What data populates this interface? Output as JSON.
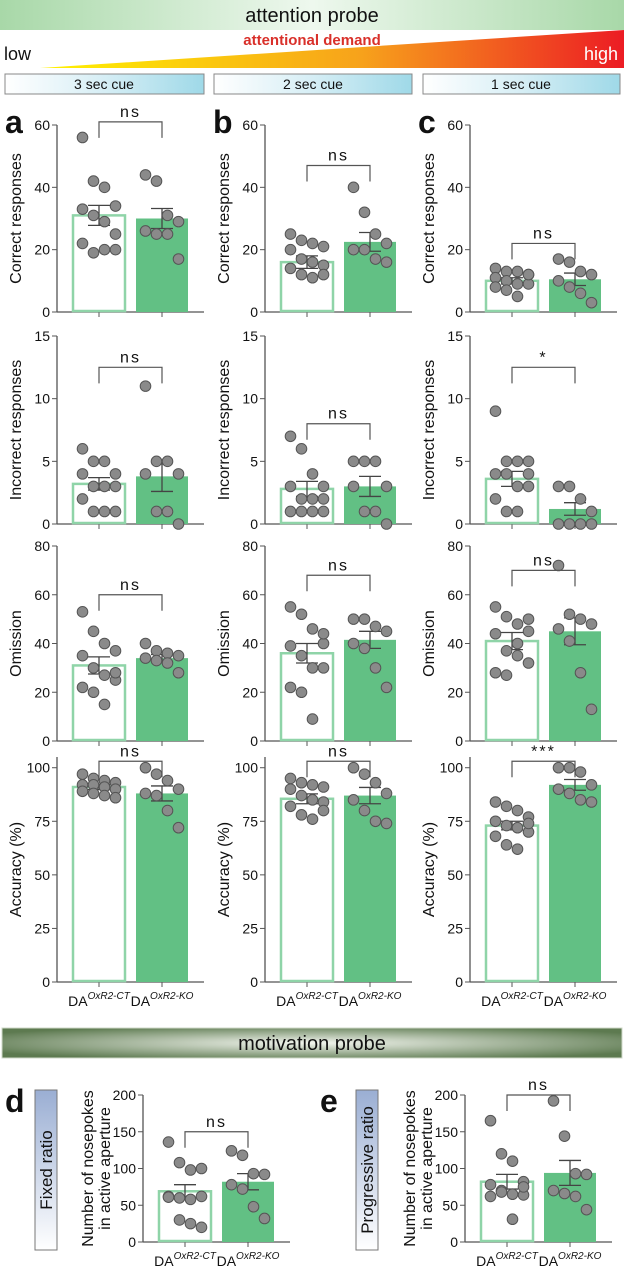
{
  "header": {
    "attention_title": "attention probe",
    "low": "low",
    "high": "high",
    "demand": "attentional demand",
    "cues": [
      "3 sec cue",
      "2 sec cue",
      "1 sec cue"
    ]
  },
  "motivation_title": "motivation probe",
  "x_labels": {
    "ct_base": "DA",
    "ct_sup": "OxR2-CT",
    "ko_base": "DA",
    "ko_sup": "OxR2-KO"
  },
  "side_boxes": {
    "d": "Fixed ratio",
    "e": "Progressive ratio"
  },
  "colors": {
    "ct_edge": "#8fd4a8",
    "ko_fill": "#62c084",
    "point": "#8a8a8a",
    "demand_text": "#d9302a"
  },
  "chart_data": [
    {
      "panel_letter": "a",
      "type": "bar",
      "ylabel": "Correct responses",
      "ylim": [
        0,
        60
      ],
      "yticks": [
        "0",
        "20",
        "40",
        "60"
      ],
      "categories": [
        "DA OxR2-CT",
        "DA OxR2-KO"
      ],
      "series": [
        {
          "name": "DA OxR2-CT",
          "mean": 31,
          "sem": 3.2,
          "points": [
            56,
            42,
            40,
            34,
            33,
            31,
            29,
            25,
            22,
            19,
            20,
            20
          ]
        },
        {
          "name": "DA OxR2-KO",
          "mean": 30,
          "sem": 3.2,
          "points": [
            44,
            42,
            31,
            29,
            26,
            25,
            25,
            17
          ]
        }
      ],
      "significance": {
        "label": "ns",
        "bracket": 61
      }
    },
    {
      "panel_letter": "b",
      "type": "bar",
      "ylabel": "Correct responses",
      "ylim": [
        0,
        60
      ],
      "yticks": [
        "0",
        "20",
        "40",
        "60"
      ],
      "categories": [
        "DA OxR2-CT",
        "DA OxR2-KO"
      ],
      "series": [
        {
          "name": "DA OxR2-CT",
          "mean": 16,
          "sem": 2,
          "points": [
            25,
            23,
            22,
            21,
            20,
            17,
            16,
            15,
            14,
            12,
            11,
            12
          ]
        },
        {
          "name": "DA OxR2-KO",
          "mean": 22.5,
          "sem": 3,
          "points": [
            40,
            32,
            25,
            22,
            20,
            20,
            17,
            16
          ]
        }
      ],
      "significance": {
        "label": "ns",
        "bracket": 47
      }
    },
    {
      "panel_letter": "c",
      "type": "bar",
      "ylabel": "Correct responses",
      "ylim": [
        0,
        60
      ],
      "yticks": [
        "0",
        "20",
        "40",
        "60"
      ],
      "categories": [
        "DA OxR2-CT",
        "DA OxR2-KO"
      ],
      "series": [
        {
          "name": "DA OxR2-CT",
          "mean": 10,
          "sem": 1,
          "points": [
            14,
            13,
            13,
            12,
            11,
            10,
            9,
            9,
            8,
            7,
            5,
            12
          ]
        },
        {
          "name": "DA OxR2-KO",
          "mean": 10.5,
          "sem": 2,
          "points": [
            17,
            16,
            13,
            12,
            10,
            8,
            6,
            3
          ]
        }
      ],
      "significance": {
        "label": "ns",
        "bracket": 22
      }
    },
    {
      "panel_letter": "",
      "type": "bar",
      "ylabel": "Incorrect responses",
      "ylim": [
        0,
        15
      ],
      "yticks": [
        "0",
        "5",
        "10",
        "15"
      ],
      "categories": [
        "DA OxR2-CT",
        "DA OxR2-KO"
      ],
      "series": [
        {
          "name": "DA OxR2-CT",
          "mean": 3.2,
          "sem": 0.5,
          "points": [
            6,
            5,
            5,
            4,
            4,
            3,
            3,
            3,
            2,
            1,
            1,
            1
          ]
        },
        {
          "name": "DA OxR2-KO",
          "mean": 3.8,
          "sem": 1.2,
          "points": [
            11,
            5,
            5,
            4,
            4,
            1,
            1,
            0
          ]
        }
      ],
      "significance": {
        "label": "ns",
        "bracket": 12.5
      }
    },
    {
      "panel_letter": "",
      "type": "bar",
      "ylabel": "Incorrect responses",
      "ylim": [
        0,
        15
      ],
      "yticks": [
        "0",
        "5",
        "10",
        "15"
      ],
      "categories": [
        "DA OxR2-CT",
        "DA OxR2-KO"
      ],
      "series": [
        {
          "name": "DA OxR2-CT",
          "mean": 2.8,
          "sem": 0.6,
          "points": [
            7,
            6,
            4,
            3,
            3,
            2,
            2,
            1,
            1,
            1,
            1,
            2
          ]
        },
        {
          "name": "DA OxR2-KO",
          "mean": 3,
          "sem": 0.8,
          "points": [
            5,
            5,
            5,
            3,
            3,
            1,
            1,
            0
          ]
        }
      ],
      "significance": {
        "label": "ns",
        "bracket": 8
      }
    },
    {
      "panel_letter": "",
      "type": "bar",
      "ylabel": "Incorrect responses",
      "ylim": [
        0,
        15
      ],
      "yticks": [
        "0",
        "5",
        "10",
        "15"
      ],
      "categories": [
        "DA OxR2-CT",
        "DA OxR2-KO"
      ],
      "series": [
        {
          "name": "DA OxR2-CT",
          "mean": 3.6,
          "sem": 0.6,
          "points": [
            9,
            5,
            5,
            4,
            4,
            4,
            3,
            3,
            2,
            1,
            1,
            5
          ]
        },
        {
          "name": "DA OxR2-KO",
          "mean": 1.2,
          "sem": 0.5,
          "points": [
            3,
            3,
            2,
            1,
            0,
            0,
            0,
            0
          ]
        }
      ],
      "significance": {
        "label": "*",
        "bracket": 12.5
      }
    },
    {
      "panel_letter": "",
      "type": "bar",
      "ylabel": "Omission",
      "ylim": [
        0,
        80
      ],
      "yticks": [
        "0",
        "20",
        "40",
        "60",
        "80"
      ],
      "categories": [
        "DA OxR2-CT",
        "DA OxR2-KO"
      ],
      "series": [
        {
          "name": "DA OxR2-CT",
          "mean": 31,
          "sem": 3.5,
          "points": [
            53,
            45,
            40,
            37,
            35,
            30,
            27,
            25,
            22,
            20,
            15,
            28
          ]
        },
        {
          "name": "DA OxR2-KO",
          "mean": 34,
          "sem": 1.5,
          "points": [
            40,
            37,
            36,
            35,
            34,
            33,
            32,
            28
          ]
        }
      ],
      "significance": {
        "label": "ns",
        "bracket": 60
      }
    },
    {
      "panel_letter": "",
      "type": "bar",
      "ylabel": "Omission",
      "ylim": [
        0,
        80
      ],
      "yticks": [
        "0",
        "20",
        "40",
        "60",
        "80"
      ],
      "categories": [
        "DA OxR2-CT",
        "DA OxR2-KO"
      ],
      "series": [
        {
          "name": "DA OxR2-CT",
          "mean": 36,
          "sem": 4,
          "points": [
            55,
            52,
            46,
            40,
            39,
            35,
            30,
            30,
            22,
            20,
            9,
            44
          ]
        },
        {
          "name": "DA OxR2-KO",
          "mean": 41.5,
          "sem": 3.5,
          "points": [
            50,
            50,
            47,
            45,
            40,
            38,
            30,
            22
          ]
        }
      ],
      "significance": {
        "label": "ns",
        "bracket": 68
      }
    },
    {
      "panel_letter": "",
      "type": "bar",
      "ylabel": "Omission",
      "ylim": [
        0,
        80
      ],
      "yticks": [
        "0",
        "20",
        "40",
        "60",
        "80"
      ],
      "categories": [
        "DA OxR2-CT",
        "DA OxR2-KO"
      ],
      "series": [
        {
          "name": "DA OxR2-CT",
          "mean": 41,
          "sem": 3.5,
          "points": [
            55,
            51,
            48,
            45,
            44,
            37,
            35,
            32,
            28,
            27,
            40,
            50
          ]
        },
        {
          "name": "DA OxR2-KO",
          "mean": 45,
          "sem": 5.5,
          "points": [
            72,
            52,
            50,
            48,
            46,
            41,
            28,
            13
          ]
        }
      ],
      "significance": {
        "label": "ns",
        "bracket": 70
      }
    },
    {
      "panel_letter": "",
      "type": "bar",
      "ylabel": "Accuracy (%)",
      "ylim": [
        0,
        105
      ],
      "yticks": [
        "0",
        "25",
        "50",
        "75",
        "100"
      ],
      "categories": [
        "DA OxR2-CT",
        "DA OxR2-KO"
      ],
      "series": [
        {
          "name": "DA OxR2-CT",
          "mean": 91,
          "sem": 1.2,
          "points": [
            97,
            95,
            94,
            93,
            92,
            92,
            91,
            90,
            89,
            88,
            87,
            86
          ]
        },
        {
          "name": "DA OxR2-KO",
          "mean": 88,
          "sem": 3.5,
          "points": [
            100,
            97,
            94,
            90,
            88,
            87,
            80,
            72
          ]
        }
      ],
      "significance": {
        "label": "ns",
        "bracket": 103
      }
    },
    {
      "panel_letter": "",
      "type": "bar",
      "ylabel": "Accuracy (%)",
      "ylim": [
        0,
        105
      ],
      "yticks": [
        "0",
        "25",
        "50",
        "75",
        "100"
      ],
      "categories": [
        "DA OxR2-CT",
        "DA OxR2-KO"
      ],
      "series": [
        {
          "name": "DA OxR2-CT",
          "mean": 85.5,
          "sem": 2.3,
          "points": [
            95,
            93,
            92,
            91,
            90,
            87,
            85,
            84,
            82,
            78,
            76,
            80
          ]
        },
        {
          "name": "DA OxR2-KO",
          "mean": 87,
          "sem": 3.8,
          "points": [
            100,
            97,
            93,
            88,
            85,
            80,
            75,
            74
          ]
        }
      ],
      "significance": {
        "label": "ns",
        "bracket": 103
      }
    },
    {
      "panel_letter": "",
      "type": "bar",
      "ylabel": "Accuracy (%)",
      "ylim": [
        0,
        105
      ],
      "yticks": [
        "0",
        "25",
        "50",
        "75",
        "100"
      ],
      "categories": [
        "DA OxR2-CT",
        "DA OxR2-KO"
      ],
      "series": [
        {
          "name": "DA OxR2-CT",
          "mean": 73,
          "sem": 2,
          "points": [
            84,
            82,
            80,
            77,
            75,
            73,
            72,
            70,
            68,
            64,
            62,
            74
          ]
        },
        {
          "name": "DA OxR2-KO",
          "mean": 92,
          "sem": 2.5,
          "points": [
            100,
            100,
            98,
            92,
            90,
            88,
            85,
            84
          ]
        }
      ],
      "significance": {
        "label": "***",
        "bracket": 103
      }
    },
    {
      "panel_letter": "d",
      "type": "bar",
      "ylabel": "Number of nosepokes",
      "ylabel2": "in active aperture",
      "ylim": [
        0,
        200
      ],
      "yticks": [
        "0",
        "50",
        "100",
        "150",
        "200"
      ],
      "categories": [
        "DA OxR2-CT",
        "DA OxR2-KO"
      ],
      "series": [
        {
          "name": "DA OxR2-CT",
          "mean": 69,
          "sem": 9,
          "points": [
            136,
            108,
            98,
            100,
            62,
            60,
            58,
            62,
            61,
            30,
            25,
            20
          ]
        },
        {
          "name": "DA OxR2-KO",
          "mean": 82,
          "sem": 11,
          "points": [
            124,
            118,
            93,
            92,
            78,
            72,
            48,
            32
          ]
        }
      ],
      "significance": {
        "label": "ns",
        "bracket": 150
      }
    },
    {
      "panel_letter": "e",
      "type": "bar",
      "ylabel": "Number of nosepokes",
      "ylabel2": "in active aperture",
      "ylim": [
        0,
        200
      ],
      "yticks": [
        "0",
        "50",
        "100",
        "150",
        "200"
      ],
      "categories": [
        "DA OxR2-CT",
        "DA OxR2-KO"
      ],
      "series": [
        {
          "name": "DA OxR2-CT",
          "mean": 82,
          "sem": 10,
          "points": [
            165,
            120,
            110,
            82,
            78,
            70,
            65,
            64,
            62,
            68,
            31,
            75
          ]
        },
        {
          "name": "DA OxR2-KO",
          "mean": 94,
          "sem": 17,
          "points": [
            192,
            144,
            93,
            92,
            70,
            66,
            62,
            44
          ]
        }
      ],
      "significance": {
        "label": "ns",
        "bracket": 200
      }
    }
  ]
}
